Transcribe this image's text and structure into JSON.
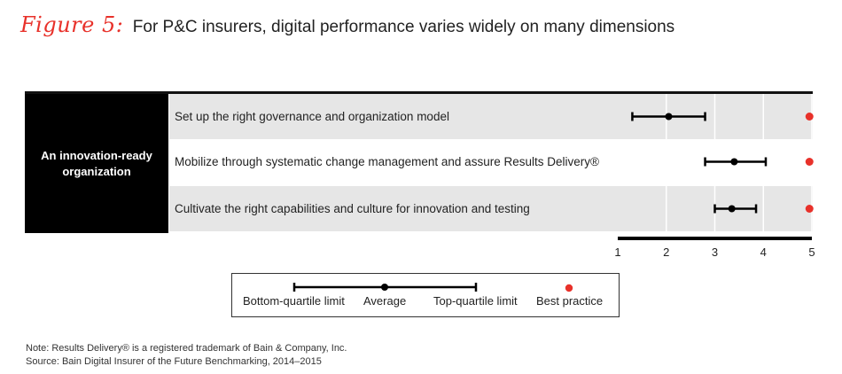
{
  "figure": {
    "label": "Figure 5:",
    "title": "For P&C insurers, digital performance varies widely on many dimensions"
  },
  "group_label": "An innovation-ready organization",
  "chart_data": {
    "type": "range",
    "xlim": [
      1,
      5
    ],
    "x_ticks": [
      "1",
      "2",
      "3",
      "4",
      "5"
    ],
    "rows": [
      {
        "label": "Set up the right governance and organization model",
        "bottom_quartile": 1.3,
        "average": 2.05,
        "top_quartile": 2.8,
        "best_practice": 4.95
      },
      {
        "label": "Mobilize through systematic change management and assure Results Delivery®",
        "bottom_quartile": 2.8,
        "average": 3.4,
        "top_quartile": 4.05,
        "best_practice": 4.95
      },
      {
        "label": "Cultivate the right capabilities and culture for innovation and testing",
        "bottom_quartile": 3.0,
        "average": 3.35,
        "top_quartile": 3.85,
        "best_practice": 4.95
      }
    ],
    "colors": {
      "range": "#000000",
      "best_practice": "#e8312a",
      "shade": "#e6e6e6"
    }
  },
  "legend": {
    "bottom": "Bottom-quartile limit",
    "average": "Average",
    "top": "Top-quartile limit",
    "best": "Best practice"
  },
  "notes": {
    "note": "Note: Results Delivery® is a registered trademark of Bain & Company, Inc.",
    "source": "Source: Bain Digital Insurer of the Future Benchmarking, 2014–2015"
  }
}
